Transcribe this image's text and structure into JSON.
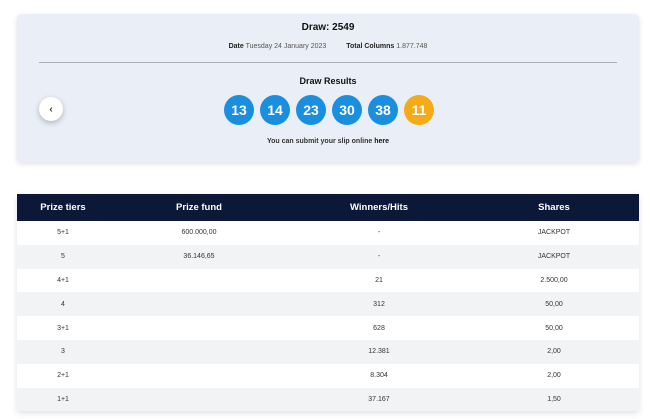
{
  "draw": {
    "title": "Draw: 2549",
    "date_label": "Date",
    "date_value": "Tuesday 24 January 2023",
    "columns_label": "Total Columns",
    "columns_value": "1.877.748",
    "results_title": "Draw Results",
    "numbers": [
      "13",
      "14",
      "23",
      "30",
      "38"
    ],
    "bonus_number": "11",
    "submit_text": "You can submit your slip online",
    "submit_link": "here",
    "prev_icon": "chevron-left-icon",
    "ball_color": "#1a8fe0",
    "bonus_color": "#f5ab17"
  },
  "table": {
    "headers": [
      "Prize tiers",
      "Prize fund",
      "Winners/Hits",
      "Shares"
    ],
    "rows": [
      [
        "5+1",
        "600.000,00",
        "-",
        "JACKPOT"
      ],
      [
        "5",
        "36.146,65",
        "-",
        "JACKPOT"
      ],
      [
        "4+1",
        "",
        "21",
        "2.500,00"
      ],
      [
        "4",
        "",
        "312",
        "50,00"
      ],
      [
        "3+1",
        "",
        "628",
        "50,00"
      ],
      [
        "3",
        "",
        "12.381",
        "2,00"
      ],
      [
        "2+1",
        "",
        "8.304",
        "2,00"
      ],
      [
        "1+1",
        "",
        "37.167",
        "1,50"
      ]
    ],
    "header_bg": "#0b1837"
  }
}
